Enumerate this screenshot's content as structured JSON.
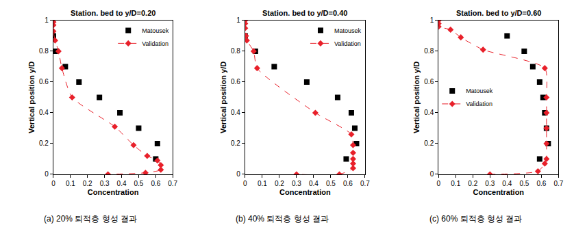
{
  "chart_data": [
    {
      "type": "scatter",
      "title": "Station. bed to y/D=0.20",
      "caption": "(a) 20% 퇴적층 형성 결과",
      "x_label": "Concentration",
      "y_label": "Vertical position y/D",
      "xlim": [
        0,
        0.7
      ],
      "xticks": [
        0,
        0.1,
        0.2,
        0.3,
        0.4,
        0.5,
        0.6,
        0.7
      ],
      "ylim": [
        0,
        1
      ],
      "yticks": [
        0,
        0.2,
        0.4,
        0.6,
        0.8,
        1
      ],
      "legend": "upper right",
      "grid": false,
      "series": [
        {
          "name": "Matousek",
          "color": "#000000",
          "marker": "square",
          "line_style": "none",
          "x": [
            0.0,
            0.01,
            0.07,
            0.15,
            0.27,
            0.39,
            0.5,
            0.61,
            0.6
          ],
          "values": [
            0.9,
            0.8,
            0.7,
            0.6,
            0.5,
            0.4,
            0.3,
            0.2,
            0.1
          ]
        },
        {
          "name": "Validation",
          "color": "#e8202a",
          "marker": "diamond",
          "line_style": "dashed",
          "x": [
            0.0,
            0.0,
            0.0,
            0.01,
            0.03,
            0.05,
            0.11,
            0.36,
            0.47,
            0.55,
            0.61,
            0.63,
            0.63,
            0.54,
            0.32
          ],
          "values": [
            0.99,
            0.97,
            0.93,
            0.87,
            0.8,
            0.69,
            0.5,
            0.31,
            0.19,
            0.12,
            0.09,
            0.06,
            0.03,
            0.01,
            0.0
          ]
        }
      ]
    },
    {
      "type": "scatter",
      "title": "Station. bed to y/D=0.40",
      "caption": "(b) 40% 퇴적층 형성 결과",
      "x_label": "Concentration",
      "y_label": "Vertical position y/D",
      "xlim": [
        0,
        0.7
      ],
      "xticks": [
        0,
        0.1,
        0.2,
        0.3,
        0.4,
        0.5,
        0.6,
        0.7
      ],
      "ylim": [
        0,
        1
      ],
      "yticks": [
        0,
        0.2,
        0.4,
        0.6,
        0.8,
        1
      ],
      "legend": "upper right",
      "grid": false,
      "series": [
        {
          "name": "Matousek",
          "color": "#000000",
          "marker": "square",
          "line_style": "none",
          "x": [
            0.0,
            0.06,
            0.17,
            0.36,
            0.54,
            0.62,
            0.64,
            0.65,
            0.59
          ],
          "values": [
            0.9,
            0.8,
            0.7,
            0.6,
            0.5,
            0.4,
            0.3,
            0.2,
            0.1
          ]
        },
        {
          "name": "Validation",
          "color": "#e8202a",
          "marker": "diamond",
          "line_style": "dashed",
          "x": [
            0.0,
            0.0,
            0.0,
            0.005,
            0.01,
            0.05,
            0.07,
            0.41,
            0.62,
            0.63,
            0.63,
            0.63,
            0.63,
            0.63,
            0.55,
            0.3
          ],
          "values": [
            1.0,
            0.98,
            0.95,
            0.9,
            0.87,
            0.8,
            0.69,
            0.4,
            0.26,
            0.19,
            0.14,
            0.1,
            0.07,
            0.04,
            0.0,
            0.0
          ]
        }
      ]
    },
    {
      "type": "scatter",
      "title": "Station. bed to y/D=0.60",
      "caption": "(c) 60% 퇴적층 형성 결과",
      "x_label": "Concentration",
      "y_label": "Vertical position y/D",
      "xlim": [
        0,
        0.7
      ],
      "xticks": [
        0,
        0.1,
        0.2,
        0.3,
        0.4,
        0.5,
        0.6,
        0.7
      ],
      "ylim": [
        0,
        1
      ],
      "yticks": [
        0,
        0.2,
        0.4,
        0.6,
        0.8,
        1
      ],
      "legend": "center left",
      "grid": false,
      "series": [
        {
          "name": "Matousek",
          "color": "#000000",
          "marker": "square",
          "line_style": "none",
          "x": [
            0.4,
            0.5,
            0.55,
            0.59,
            0.61,
            0.62,
            0.63,
            0.64,
            0.59
          ],
          "values": [
            0.9,
            0.8,
            0.7,
            0.6,
            0.5,
            0.4,
            0.3,
            0.2,
            0.1
          ]
        },
        {
          "name": "Validation",
          "color": "#e8202a",
          "marker": "diamond",
          "line_style": "dashed",
          "x": [
            0.0,
            0.0,
            0.0,
            0.07,
            0.13,
            0.26,
            0.62,
            0.63,
            0.63,
            0.63,
            0.63,
            0.63,
            0.62,
            0.58,
            0.3
          ],
          "values": [
            1.0,
            0.98,
            0.96,
            0.94,
            0.89,
            0.81,
            0.69,
            0.5,
            0.4,
            0.3,
            0.2,
            0.1,
            0.07,
            0.02,
            0.0
          ]
        }
      ]
    }
  ]
}
